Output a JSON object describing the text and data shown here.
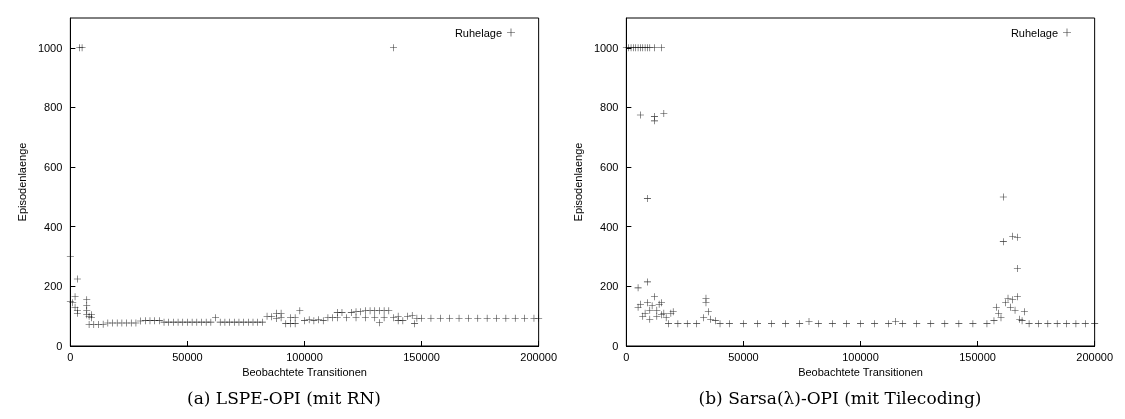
{
  "chart_data": [
    {
      "type": "scatter",
      "title": "(a) LSPE-OPI (mit RN)",
      "xlabel": "Beobachtete Transitionen",
      "ylabel": "Episodenlaenge",
      "marker": "cross",
      "legend": "top right",
      "grid": false,
      "xlim": [
        0,
        200000
      ],
      "xticks": [
        0,
        50000,
        100000,
        150000,
        200000
      ],
      "ylim": [
        0,
        1100
      ],
      "yticks": [
        0,
        200,
        400,
        600,
        800,
        1000
      ],
      "series": [
        {
          "name": "Ruhelage",
          "color": "#000000",
          "x": [
            0,
            0,
            1000,
            2000,
            2000,
            3000,
            3000,
            3000,
            4000,
            5000,
            7000,
            7000,
            7000,
            7000,
            8000,
            9000,
            9000,
            62000,
            138000,
            147000,
            8000,
            10000,
            12000,
            14000,
            16000,
            18000,
            20000,
            22000,
            24000,
            26000,
            28000,
            30000,
            32000,
            34000,
            36000,
            38000,
            40000,
            42000,
            44000,
            46000,
            48000,
            50000,
            52000,
            54000,
            56000,
            58000,
            60000,
            64000,
            66000,
            68000,
            70000,
            72000,
            74000,
            76000,
            78000,
            80000,
            82000,
            84000,
            86000,
            88000,
            88000,
            90000,
            90000,
            92000,
            94000,
            94000,
            96000,
            96000,
            98000,
            100000,
            102000,
            104000,
            106000,
            108000,
            110000,
            112000,
            114000,
            114000,
            116000,
            118000,
            120000,
            122000,
            122000,
            124000,
            126000,
            126000,
            128000,
            130000,
            130000,
            132000,
            132000,
            134000,
            134000,
            136000,
            138000,
            140000,
            140000,
            142000,
            144000,
            146000,
            148000,
            150000,
            154000,
            158000,
            162000,
            166000,
            170000,
            174000,
            178000,
            182000,
            186000,
            190000,
            194000,
            198000,
            200000
          ],
          "values": [
            300,
            150,
            145,
            165,
            130,
            225,
            120,
            110,
            1000,
            1000,
            155,
            135,
            120,
            105,
            100,
            105,
            95,
            95,
            1000,
            75,
            72,
            72,
            72,
            73,
            77,
            77,
            77,
            77,
            77,
            77,
            77,
            84,
            85,
            85,
            85,
            85,
            80,
            80,
            80,
            80,
            80,
            80,
            80,
            80,
            80,
            80,
            80,
            80,
            80,
            80,
            80,
            80,
            80,
            80,
            80,
            80,
            80,
            100,
            98,
            92,
            110,
            110,
            95,
            75,
            75,
            95,
            75,
            95,
            118,
            85,
            88,
            85,
            88,
            85,
            95,
            95,
            112,
            95,
            112,
            95,
            112,
            115,
            95,
            115,
            118,
            95,
            118,
            118,
            95,
            78,
            118,
            118,
            95,
            118,
            95,
            85,
            100,
            85,
            100,
            102,
            93,
            93,
            93,
            93,
            93,
            93,
            93,
            93,
            93,
            93,
            93,
            93,
            93,
            93,
            93
          ]
        }
      ]
    },
    {
      "type": "scatter",
      "title": "(b) Sarsa(λ)-OPI (mit Tilecoding)",
      "xlabel": "Beobachtete Transitionen",
      "ylabel": "Episodenlaenge",
      "marker": "cross",
      "legend": "top right",
      "grid": false,
      "xlim": [
        0,
        200000
      ],
      "xticks": [
        0,
        50000,
        100000,
        150000,
        200000
      ],
      "ylim": [
        0,
        1100
      ],
      "yticks": [
        0,
        200,
        400,
        600,
        800,
        1000
      ],
      "series": [
        {
          "name": "Ruhelage",
          "color": "#000000",
          "x": [
            0,
            1000,
            2000,
            3000,
            4000,
            5000,
            6000,
            7000,
            8000,
            9000,
            10000,
            12000,
            15000,
            6000,
            12000,
            12000,
            16000,
            9000,
            9000,
            5000,
            5000,
            6000,
            7000,
            8000,
            9000,
            10000,
            11000,
            12000,
            13000,
            14000,
            15000,
            16000,
            17000,
            10000,
            13000,
            15000,
            19000,
            20000,
            18000,
            22000,
            26000,
            30000,
            33000,
            34000,
            34000,
            35000,
            36000,
            38000,
            40000,
            44000,
            50000,
            56000,
            62000,
            68000,
            74000,
            78000,
            82000,
            88000,
            94000,
            100000,
            106000,
            112000,
            115000,
            118000,
            124000,
            130000,
            136000,
            142000,
            148000,
            154000,
            157000,
            158000,
            159000,
            160000,
            161000,
            161000,
            162000,
            163000,
            164000,
            165000,
            165000,
            166000,
            167000,
            167000,
            167000,
            168000,
            169000,
            170000,
            172000,
            176000,
            180000,
            184000,
            188000,
            192000,
            196000,
            200000
          ],
          "values": [
            1000,
            1000,
            1000,
            1000,
            1000,
            1000,
            1000,
            1000,
            1000,
            1000,
            1000,
            1000,
            1000,
            775,
            770,
            755,
            780,
            495,
            215,
            195,
            130,
            140,
            100,
            110,
            145,
            120,
            135,
            165,
            120,
            140,
            145,
            110,
            95,
            90,
            100,
            105,
            110,
            115,
            75,
            75,
            75,
            75,
            95,
            160,
            145,
            115,
            90,
            85,
            75,
            75,
            75,
            75,
            75,
            75,
            75,
            82,
            75,
            75,
            75,
            75,
            75,
            75,
            82,
            75,
            75,
            75,
            75,
            75,
            75,
            75,
            85,
            130,
            110,
            95,
            500,
            350,
            145,
            160,
            130,
            368,
            155,
            120,
            365,
            260,
            165,
            90,
            85,
            115,
            75,
            75,
            75,
            75,
            75,
            75,
            75,
            75
          ]
        }
      ]
    }
  ]
}
